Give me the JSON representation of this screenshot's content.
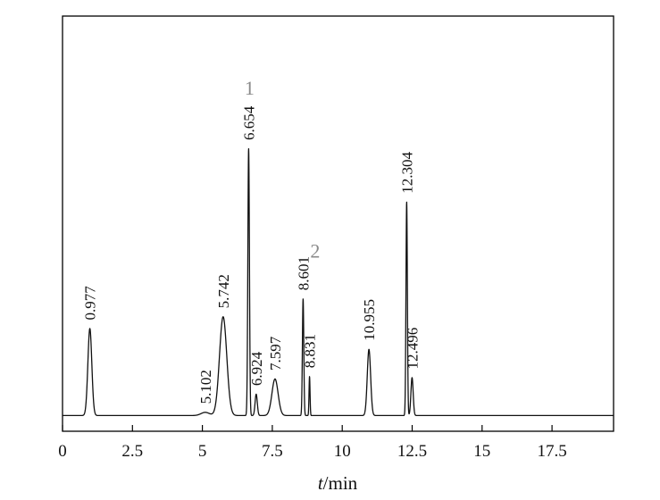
{
  "chart_data": {
    "type": "line",
    "xlabel": {
      "var": "t",
      "unit": "/min"
    },
    "ylabel": "",
    "xlim": [
      0,
      19.7
    ],
    "ylim": [
      0,
      1
    ],
    "xticks": [
      0,
      2.5,
      5,
      7.5,
      10,
      12.5,
      15,
      17.5
    ],
    "xtick_labels": [
      "0",
      "2.5",
      "5",
      "7.5",
      "10",
      "12.5",
      "15",
      "17.5"
    ],
    "grid": false,
    "legend": "none",
    "line_color": "#111111",
    "label_color": "#8a8a8a",
    "peaks": [
      {
        "rt": 0.977,
        "label": "0.977",
        "height": 0.326,
        "width": 0.07,
        "num": ""
      },
      {
        "rt": 5.102,
        "label": "5.102",
        "height": 0.012,
        "width": 0.15,
        "num": ""
      },
      {
        "rt": 5.742,
        "label": "5.742",
        "height": 0.37,
        "width": 0.13,
        "num": ""
      },
      {
        "rt": 6.654,
        "label": "6.654",
        "height": 1.0,
        "width": 0.028,
        "num": "1"
      },
      {
        "rt": 6.924,
        "label": "6.924",
        "height": 0.08,
        "width": 0.04,
        "num": ""
      },
      {
        "rt": 7.597,
        "label": "7.597",
        "height": 0.137,
        "width": 0.11,
        "num": ""
      },
      {
        "rt": 8.601,
        "label": "8.601",
        "height": 0.437,
        "width": 0.025,
        "num": "2"
      },
      {
        "rt": 8.831,
        "label": "8.831",
        "height": 0.146,
        "width": 0.018,
        "num": ""
      },
      {
        "rt": 10.955,
        "label": "10.955",
        "height": 0.248,
        "width": 0.06,
        "num": ""
      },
      {
        "rt": 12.304,
        "label": "12.304",
        "height": 0.8,
        "width": 0.025,
        "num": ""
      },
      {
        "rt": 12.496,
        "label": "12.496",
        "height": 0.142,
        "width": 0.04,
        "num": ""
      }
    ]
  }
}
